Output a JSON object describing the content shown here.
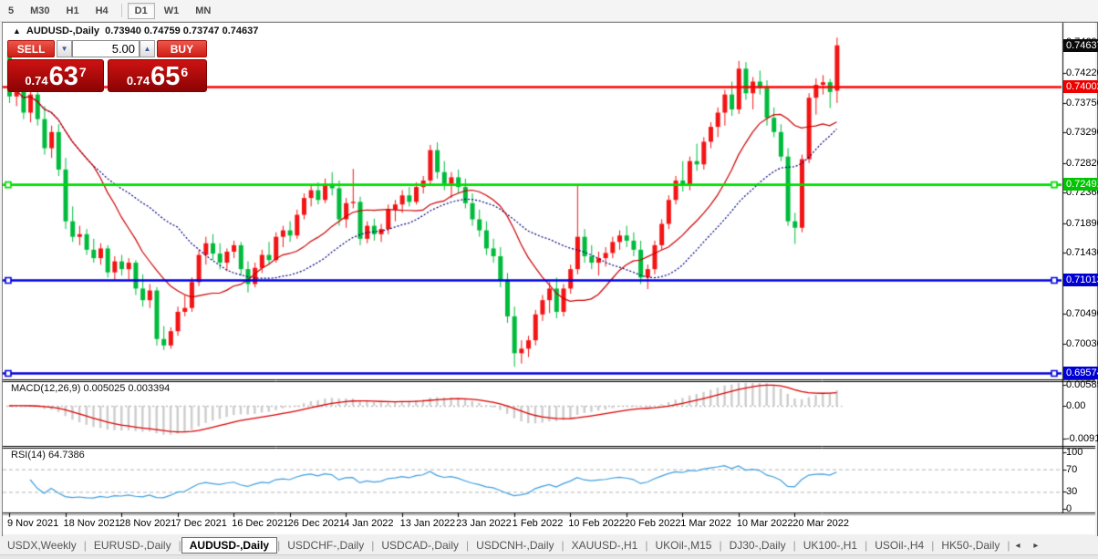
{
  "toolbar": {
    "timeframes": [
      "5",
      "M30",
      "H1",
      "H4",
      "D1",
      "W1",
      "MN"
    ],
    "active": "D1",
    "separator_before": "D1"
  },
  "chart": {
    "menu_arrow": "▲",
    "symbol_label": "AUDUSD-,Daily",
    "ohlc_text": "0.73940 0.74759 0.73747 0.74637"
  },
  "trade_panel": {
    "sell_label": "SELL",
    "buy_label": "BUY",
    "volume": "5.00",
    "spin_down": "▼",
    "spin_up": "▲",
    "sell_price_prefix": "0.74",
    "sell_price_big": "63",
    "sell_price_sup": "7",
    "buy_price_prefix": "0.74",
    "buy_price_big": "65",
    "buy_price_sup": "6"
  },
  "price_axis": {
    "ticks": [
      {
        "text": "0.74690",
        "value": 0.7469
      },
      {
        "text": "0.74220",
        "value": 0.7422
      },
      {
        "text": "0.73750",
        "value": 0.7375
      },
      {
        "text": "0.73290",
        "value": 0.7329
      },
      {
        "text": "0.72820",
        "value": 0.7282
      },
      {
        "text": "0.72360",
        "value": 0.7236
      },
      {
        "text": "0.71890",
        "value": 0.7189
      },
      {
        "text": "0.71430",
        "value": 0.7143
      },
      {
        "text": "0.70960",
        "value": 0.7096
      },
      {
        "text": "0.70490",
        "value": 0.7049
      },
      {
        "text": "0.70030",
        "value": 0.7003
      },
      {
        "text": "0.69560",
        "value": 0.6956
      }
    ],
    "badges": [
      {
        "text": "0.74637",
        "value": 0.74637,
        "bg": "#0a0a0a",
        "role": "current-price"
      },
      {
        "text": "0.74002",
        "value": 0.74002,
        "bg": "#ee0000",
        "role": "resistance-line"
      },
      {
        "text": "0.72491",
        "value": 0.72491,
        "bg": "#00c400",
        "role": "support-line"
      },
      {
        "text": "0.71013",
        "value": 0.71013,
        "bg": "#0000d4",
        "role": "support-line"
      },
      {
        "text": "0.69574",
        "value": 0.69574,
        "bg": "#0000d4",
        "role": "support-line"
      }
    ]
  },
  "macd_panel": {
    "title": "MACD(12,26,9)",
    "values_text": "0.005025 0.003394",
    "scale": [
      {
        "text": "0.00585",
        "value": 0.00585
      },
      {
        "text": "0.00",
        "value": 0
      },
      {
        "text": "-0.00918",
        "value": -0.00918
      }
    ]
  },
  "rsi_panel": {
    "title": "RSI(14)",
    "value_text": "64.7386",
    "scale": [
      {
        "text": "100",
        "value": 100
      },
      {
        "text": "70",
        "value": 70
      },
      {
        "text": "30",
        "value": 30
      },
      {
        "text": "0",
        "value": 0
      }
    ]
  },
  "date_axis": {
    "labels": [
      "9 Nov 2021",
      "18 Nov 2021",
      "28 Nov 2021",
      "7 Dec 2021",
      "16 Dec 2021",
      "26 Dec 2021",
      "4 Jan 2022",
      "13 Jan 2022",
      "23 Jan 2022",
      "1 Feb 2022",
      "10 Feb 2022",
      "20 Feb 2022",
      "1 Mar 2022",
      "10 Mar 2022",
      "20 Mar 2022"
    ]
  },
  "tabs": {
    "items": [
      "USDX,Weekly",
      "EURUSD-,Daily",
      "AUDUSD-,Daily",
      "USDCHF-,Daily",
      "USDCAD-,Daily",
      "USDCNH-,Daily",
      "XAUUSD-,H1",
      "UKOil-,M15",
      "DJ30-,Daily",
      "UK100-,H1",
      "USOil-,H4",
      "HK50-,Daily"
    ],
    "active": "AUDUSD-,Daily",
    "scroll_left": "◂",
    "scroll_right": "▸"
  },
  "chart_data": {
    "type": "candlestick",
    "symbol": "AUDUSD-",
    "timeframe": "Daily",
    "title": "AUDUSD-,Daily",
    "last_bar": {
      "open": 0.7394,
      "high": 0.74759,
      "low": 0.73747,
      "close": 0.74637
    },
    "colors": {
      "bull": "#f41414",
      "bear": "#00bb3c",
      "ma_fast": "#cc0000",
      "ma_slow": "#000080",
      "macd_hist": "#cdcdcd",
      "macd_signal": "#dd0000",
      "rsi_line": "#3f9fe0",
      "hline_red": "#ff0000",
      "hline_green": "#00dd00",
      "hline_blue": "#0000dd"
    },
    "moving_averages": [
      {
        "period": 13,
        "style": "solid"
      },
      {
        "period": 25,
        "style": "dashed"
      }
    ],
    "horizontal_lines": [
      {
        "price": 0.74002,
        "color": "#ff0000",
        "markers": false
      },
      {
        "price": 0.72491,
        "color": "#00dd00",
        "markers": true
      },
      {
        "price": 0.71013,
        "color": "#0000dd",
        "markers": true
      },
      {
        "price": 0.69574,
        "color": "#0000dd",
        "markers": true
      }
    ],
    "indicators": [
      {
        "name": "MACD",
        "params": [
          12,
          26,
          9
        ],
        "current": [
          0.005025,
          0.003394
        ],
        "scale_range": [
          0.00585,
          -0.00918
        ]
      },
      {
        "name": "RSI",
        "params": [
          14
        ],
        "current": 64.7386,
        "levels": [
          70,
          30
        ]
      }
    ],
    "bars_per_label": 8,
    "ohlc": [
      [
        0.7455,
        0.7462,
        0.7375,
        0.7385
      ],
      [
        0.7385,
        0.7415,
        0.737,
        0.7405
      ],
      [
        0.7405,
        0.742,
        0.735,
        0.736
      ],
      [
        0.736,
        0.7395,
        0.7345,
        0.7388
      ],
      [
        0.7388,
        0.7398,
        0.734,
        0.735
      ],
      [
        0.735,
        0.737,
        0.7295,
        0.7305
      ],
      [
        0.7305,
        0.734,
        0.729,
        0.733
      ],
      [
        0.733,
        0.7342,
        0.7262,
        0.7272
      ],
      [
        0.7272,
        0.729,
        0.718,
        0.7192
      ],
      [
        0.7192,
        0.7215,
        0.716,
        0.7168
      ],
      [
        0.7168,
        0.7185,
        0.7155,
        0.7172
      ],
      [
        0.7172,
        0.718,
        0.714,
        0.7148
      ],
      [
        0.7148,
        0.7165,
        0.7128,
        0.7135
      ],
      [
        0.7135,
        0.7158,
        0.7125,
        0.715
      ],
      [
        0.715,
        0.7155,
        0.7105,
        0.7113
      ],
      [
        0.7113,
        0.7138,
        0.71,
        0.713
      ],
      [
        0.713,
        0.714,
        0.7108,
        0.7118
      ],
      [
        0.7118,
        0.7135,
        0.7102,
        0.7128
      ],
      [
        0.7128,
        0.7132,
        0.7078,
        0.7088
      ],
      [
        0.7088,
        0.711,
        0.706,
        0.707
      ],
      [
        0.707,
        0.7095,
        0.7058,
        0.7085
      ],
      [
        0.7085,
        0.709,
        0.7,
        0.701
      ],
      [
        0.701,
        0.703,
        0.6993,
        0.7
      ],
      [
        0.7,
        0.7028,
        0.6995,
        0.7022
      ],
      [
        0.7022,
        0.706,
        0.7015,
        0.7052
      ],
      [
        0.7052,
        0.7078,
        0.7045,
        0.7058
      ],
      [
        0.7058,
        0.7105,
        0.7052,
        0.7098
      ],
      [
        0.7098,
        0.7148,
        0.7092,
        0.714
      ],
      [
        0.714,
        0.7168,
        0.7125,
        0.7158
      ],
      [
        0.7158,
        0.7172,
        0.7132,
        0.7142
      ],
      [
        0.7142,
        0.7158,
        0.7118,
        0.7128
      ],
      [
        0.7128,
        0.715,
        0.7115,
        0.7145
      ],
      [
        0.7145,
        0.7162,
        0.7135,
        0.7155
      ],
      [
        0.7155,
        0.716,
        0.7108,
        0.7118
      ],
      [
        0.7118,
        0.713,
        0.7082,
        0.7095
      ],
      [
        0.7095,
        0.7128,
        0.709,
        0.712
      ],
      [
        0.712,
        0.7148,
        0.7112,
        0.714
      ],
      [
        0.714,
        0.716,
        0.7125,
        0.7132
      ],
      [
        0.7132,
        0.7175,
        0.7128,
        0.7168
      ],
      [
        0.7168,
        0.7185,
        0.7152,
        0.7178
      ],
      [
        0.7178,
        0.7192,
        0.716,
        0.717
      ],
      [
        0.717,
        0.721,
        0.7165,
        0.7202
      ],
      [
        0.7202,
        0.7235,
        0.7195,
        0.7228
      ],
      [
        0.7228,
        0.7248,
        0.7215,
        0.724
      ],
      [
        0.724,
        0.7252,
        0.7218,
        0.7225
      ],
      [
        0.7225,
        0.7258,
        0.722,
        0.725
      ],
      [
        0.725,
        0.7268,
        0.7232,
        0.7243
      ],
      [
        0.7243,
        0.7255,
        0.7185,
        0.7195
      ],
      [
        0.7195,
        0.7228,
        0.7182,
        0.722
      ],
      [
        0.722,
        0.7273,
        0.7212,
        0.7222
      ],
      [
        0.7222,
        0.723,
        0.7155,
        0.7165
      ],
      [
        0.7165,
        0.7192,
        0.7158,
        0.7185
      ],
      [
        0.7185,
        0.7196,
        0.7162,
        0.7172
      ],
      [
        0.7172,
        0.7188,
        0.716,
        0.718
      ],
      [
        0.718,
        0.7218,
        0.7172,
        0.721
      ],
      [
        0.721,
        0.7225,
        0.7192,
        0.7218
      ],
      [
        0.7218,
        0.724,
        0.7205,
        0.7232
      ],
      [
        0.7232,
        0.7245,
        0.7215,
        0.7222
      ],
      [
        0.7222,
        0.7252,
        0.7218,
        0.7245
      ],
      [
        0.7245,
        0.7262,
        0.7235,
        0.7255
      ],
      [
        0.7255,
        0.731,
        0.7248,
        0.7302
      ],
      [
        0.7302,
        0.7314,
        0.7258,
        0.7268
      ],
      [
        0.7268,
        0.7285,
        0.724,
        0.725
      ],
      [
        0.725,
        0.7268,
        0.7228,
        0.726
      ],
      [
        0.726,
        0.7272,
        0.7235,
        0.7245
      ],
      [
        0.7245,
        0.7258,
        0.7212,
        0.722
      ],
      [
        0.722,
        0.7235,
        0.7185,
        0.7195
      ],
      [
        0.7195,
        0.721,
        0.7168,
        0.7178
      ],
      [
        0.7178,
        0.7192,
        0.714,
        0.715
      ],
      [
        0.715,
        0.7165,
        0.7128,
        0.7138
      ],
      [
        0.7138,
        0.7152,
        0.709,
        0.71
      ],
      [
        0.71,
        0.7112,
        0.7035,
        0.7045
      ],
      [
        0.7045,
        0.706,
        0.6967,
        0.6988
      ],
      [
        0.6988,
        0.7008,
        0.6972,
        0.6995
      ],
      [
        0.6995,
        0.7015,
        0.6982,
        0.7008
      ],
      [
        0.7008,
        0.7055,
        0.7,
        0.7048
      ],
      [
        0.7048,
        0.7078,
        0.7038,
        0.707
      ],
      [
        0.707,
        0.7098,
        0.705,
        0.7088
      ],
      [
        0.7088,
        0.7105,
        0.7042,
        0.7052
      ],
      [
        0.7052,
        0.7095,
        0.7045,
        0.7088
      ],
      [
        0.7088,
        0.7125,
        0.708,
        0.7118
      ],
      [
        0.7118,
        0.7248,
        0.711,
        0.7168
      ],
      [
        0.7168,
        0.718,
        0.7128,
        0.7138
      ],
      [
        0.7138,
        0.7155,
        0.7118,
        0.7128
      ],
      [
        0.7128,
        0.7145,
        0.7108,
        0.7135
      ],
      [
        0.7135,
        0.7152,
        0.7122,
        0.7143
      ],
      [
        0.7143,
        0.7168,
        0.7135,
        0.716
      ],
      [
        0.716,
        0.7178,
        0.7148,
        0.717
      ],
      [
        0.717,
        0.7185,
        0.7152,
        0.7162
      ],
      [
        0.7162,
        0.7175,
        0.7138,
        0.7148
      ],
      [
        0.7148,
        0.7162,
        0.7095,
        0.7105
      ],
      [
        0.7105,
        0.7125,
        0.7087,
        0.7118
      ],
      [
        0.7118,
        0.7162,
        0.711,
        0.7155
      ],
      [
        0.7155,
        0.7195,
        0.7148,
        0.7188
      ],
      [
        0.7188,
        0.7232,
        0.718,
        0.7225
      ],
      [
        0.7225,
        0.7262,
        0.7218,
        0.7255
      ],
      [
        0.7255,
        0.7285,
        0.7238,
        0.7248
      ],
      [
        0.7248,
        0.7292,
        0.724,
        0.7285
      ],
      [
        0.7285,
        0.7312,
        0.727,
        0.728
      ],
      [
        0.728,
        0.7322,
        0.7272,
        0.7315
      ],
      [
        0.7315,
        0.7345,
        0.7305,
        0.7338
      ],
      [
        0.7338,
        0.7368,
        0.7322,
        0.736
      ],
      [
        0.736,
        0.7395,
        0.734,
        0.7388
      ],
      [
        0.7388,
        0.7408,
        0.7355,
        0.7365
      ],
      [
        0.7365,
        0.744,
        0.7358,
        0.7428
      ],
      [
        0.7428,
        0.7438,
        0.738,
        0.739
      ],
      [
        0.739,
        0.7415,
        0.7365,
        0.7408
      ],
      [
        0.7408,
        0.7425,
        0.7388,
        0.7398
      ],
      [
        0.7398,
        0.741,
        0.734,
        0.7352
      ],
      [
        0.7352,
        0.7368,
        0.7322,
        0.733
      ],
      [
        0.733,
        0.7342,
        0.7285,
        0.7292
      ],
      [
        0.7292,
        0.7305,
        0.7185,
        0.7192
      ],
      [
        0.7192,
        0.7205,
        0.7157,
        0.7182
      ],
      [
        0.7182,
        0.7295,
        0.7175,
        0.7288
      ],
      [
        0.7288,
        0.739,
        0.7282,
        0.7383
      ],
      [
        0.7383,
        0.7413,
        0.7357,
        0.7403
      ],
      [
        0.7403,
        0.7418,
        0.7388,
        0.7407
      ],
      [
        0.7407,
        0.7412,
        0.7367,
        0.7392
      ],
      [
        0.7394,
        0.7476,
        0.7375,
        0.7464
      ]
    ]
  }
}
